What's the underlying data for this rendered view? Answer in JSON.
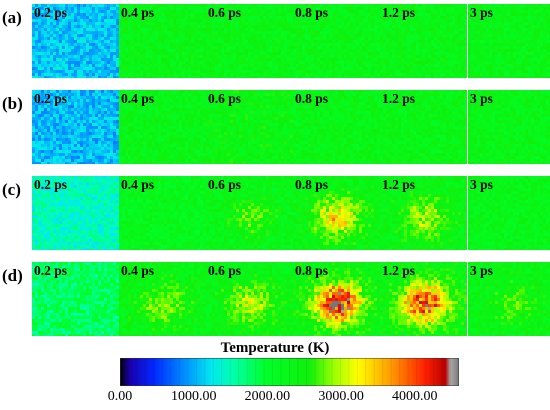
{
  "rows": [
    {
      "label": "(a)",
      "panels": [
        {
          "time": "0.2 ps",
          "temp": 1100,
          "hot": 0
        },
        {
          "time": "0.4 ps",
          "temp": 2350,
          "hot": 0
        },
        {
          "time": "0.6 ps",
          "temp": 2350,
          "hot": 0
        },
        {
          "time": "0.8 ps",
          "temp": 2350,
          "hot": 0
        },
        {
          "time": "1.2 ps",
          "temp": 2350,
          "hot": 0
        },
        {
          "time": "3 ps",
          "temp": 2350,
          "hot": 0
        }
      ]
    },
    {
      "label": "(b)",
      "panels": [
        {
          "time": "0.2 ps",
          "temp": 1050,
          "hot": 0
        },
        {
          "time": "0.4 ps",
          "temp": 2350,
          "hot": 0
        },
        {
          "time": "0.6 ps",
          "temp": 2400,
          "hot": 0
        },
        {
          "time": "0.8 ps",
          "temp": 2350,
          "hot": 0
        },
        {
          "time": "1.2 ps",
          "temp": 2350,
          "hot": 0
        },
        {
          "time": "3 ps",
          "temp": 2350,
          "hot": 0
        }
      ]
    },
    {
      "label": "(c)",
      "panels": [
        {
          "time": "0.2 ps",
          "temp": 1450,
          "hot": 0
        },
        {
          "time": "0.4 ps",
          "temp": 2250,
          "hot": 0
        },
        {
          "time": "0.6 ps",
          "temp": 2300,
          "hot": 400
        },
        {
          "time": "0.8 ps",
          "temp": 2350,
          "hot": 1000
        },
        {
          "time": "1.2 ps",
          "temp": 2350,
          "hot": 600
        },
        {
          "time": "3 ps",
          "temp": 2300,
          "hot": 0
        }
      ]
    },
    {
      "label": "(d)",
      "panels": [
        {
          "time": "0.2 ps",
          "temp": 1800,
          "hot": 0
        },
        {
          "time": "0.4 ps",
          "temp": 2350,
          "hot": 500
        },
        {
          "time": "0.6 ps",
          "temp": 2350,
          "hot": 700
        },
        {
          "time": "0.8 ps",
          "temp": 2400,
          "hot": 1900
        },
        {
          "time": "1.2 ps",
          "temp": 2400,
          "hot": 1700
        },
        {
          "time": "3 ps",
          "temp": 2350,
          "hot": 300
        }
      ]
    }
  ],
  "colorbar": {
    "title": "Temperature (K)",
    "min": 0,
    "max": 4600,
    "ticks": [
      {
        "value": 0,
        "label": "0.00"
      },
      {
        "value": 1000,
        "label": "1000.00"
      },
      {
        "value": 2000,
        "label": "2000.00"
      },
      {
        "value": 3000,
        "label": "3000.00"
      },
      {
        "value": 4000,
        "label": "4000.00"
      }
    ],
    "stops": [
      {
        "t": 0.0,
        "color": "#000000"
      },
      {
        "t": 0.03,
        "color": "#1a00b0"
      },
      {
        "t": 0.1,
        "color": "#0028ff"
      },
      {
        "t": 0.2,
        "color": "#0099ff"
      },
      {
        "t": 0.27,
        "color": "#00e8f0"
      },
      {
        "t": 0.33,
        "color": "#00ffb0"
      },
      {
        "t": 0.43,
        "color": "#00ff2a"
      },
      {
        "t": 0.56,
        "color": "#0ff00a"
      },
      {
        "t": 0.63,
        "color": "#9aff00"
      },
      {
        "t": 0.7,
        "color": "#ffff00"
      },
      {
        "t": 0.8,
        "color": "#ff9a00"
      },
      {
        "t": 0.9,
        "color": "#ff2000"
      },
      {
        "t": 0.96,
        "color": "#b80000"
      },
      {
        "t": 0.975,
        "color": "#aaaaaa"
      },
      {
        "t": 1.0,
        "color": "#777777"
      }
    ]
  }
}
